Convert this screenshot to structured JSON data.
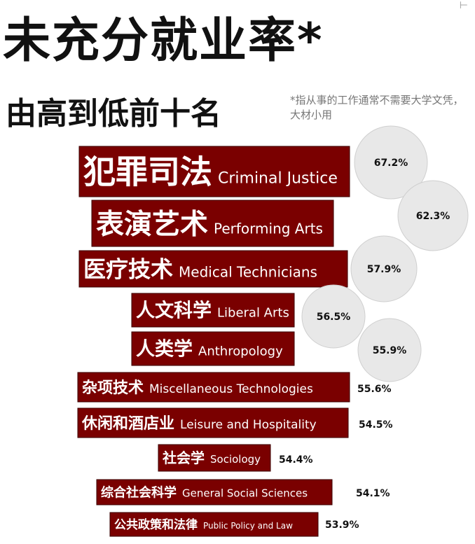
{
  "title": "未充分就业率*",
  "subtitle": "由高到低前十名",
  "footnote": "*指从事的工作通常不需要大学文凭，大材小用",
  "corner_mark": "⊢",
  "colors": {
    "bar": "#7a0000",
    "bubble": "#e8e8e8",
    "text": "#111111"
  },
  "chart_data": {
    "type": "bar",
    "orientation": "horizontal",
    "title": "未充分就业率*",
    "subtitle": "由高到低前十名",
    "unit": "%",
    "categories": [
      {
        "zh": "犯罪司法",
        "en": "Criminal Justice"
      },
      {
        "zh": "表演艺术",
        "en": "Performing Arts"
      },
      {
        "zh": "医疗技术",
        "en": "Medical Technicians"
      },
      {
        "zh": "人文科学",
        "en": "Liberal Arts"
      },
      {
        "zh": "人类学",
        "en": "Anthropology"
      },
      {
        "zh": "杂项技术",
        "en": "Miscellaneous Technologies"
      },
      {
        "zh": "休闲和酒店业",
        "en": "Leisure and Hospitality"
      },
      {
        "zh": "社会学",
        "en": "Sociology"
      },
      {
        "zh": "综合社会科学",
        "en": "General Social Sciences"
      },
      {
        "zh": "公共政策和法律",
        "en": "Public Policy and Law"
      }
    ],
    "values": [
      67.2,
      62.3,
      57.9,
      56.5,
      55.9,
      55.6,
      54.5,
      54.4,
      54.1,
      53.9
    ],
    "value_labels": [
      "67.2%",
      "62.3%",
      "57.9%",
      "56.5%",
      "55.9%",
      "55.6%",
      "54.5%",
      "54.4%",
      "54.1%",
      "53.9%"
    ]
  }
}
